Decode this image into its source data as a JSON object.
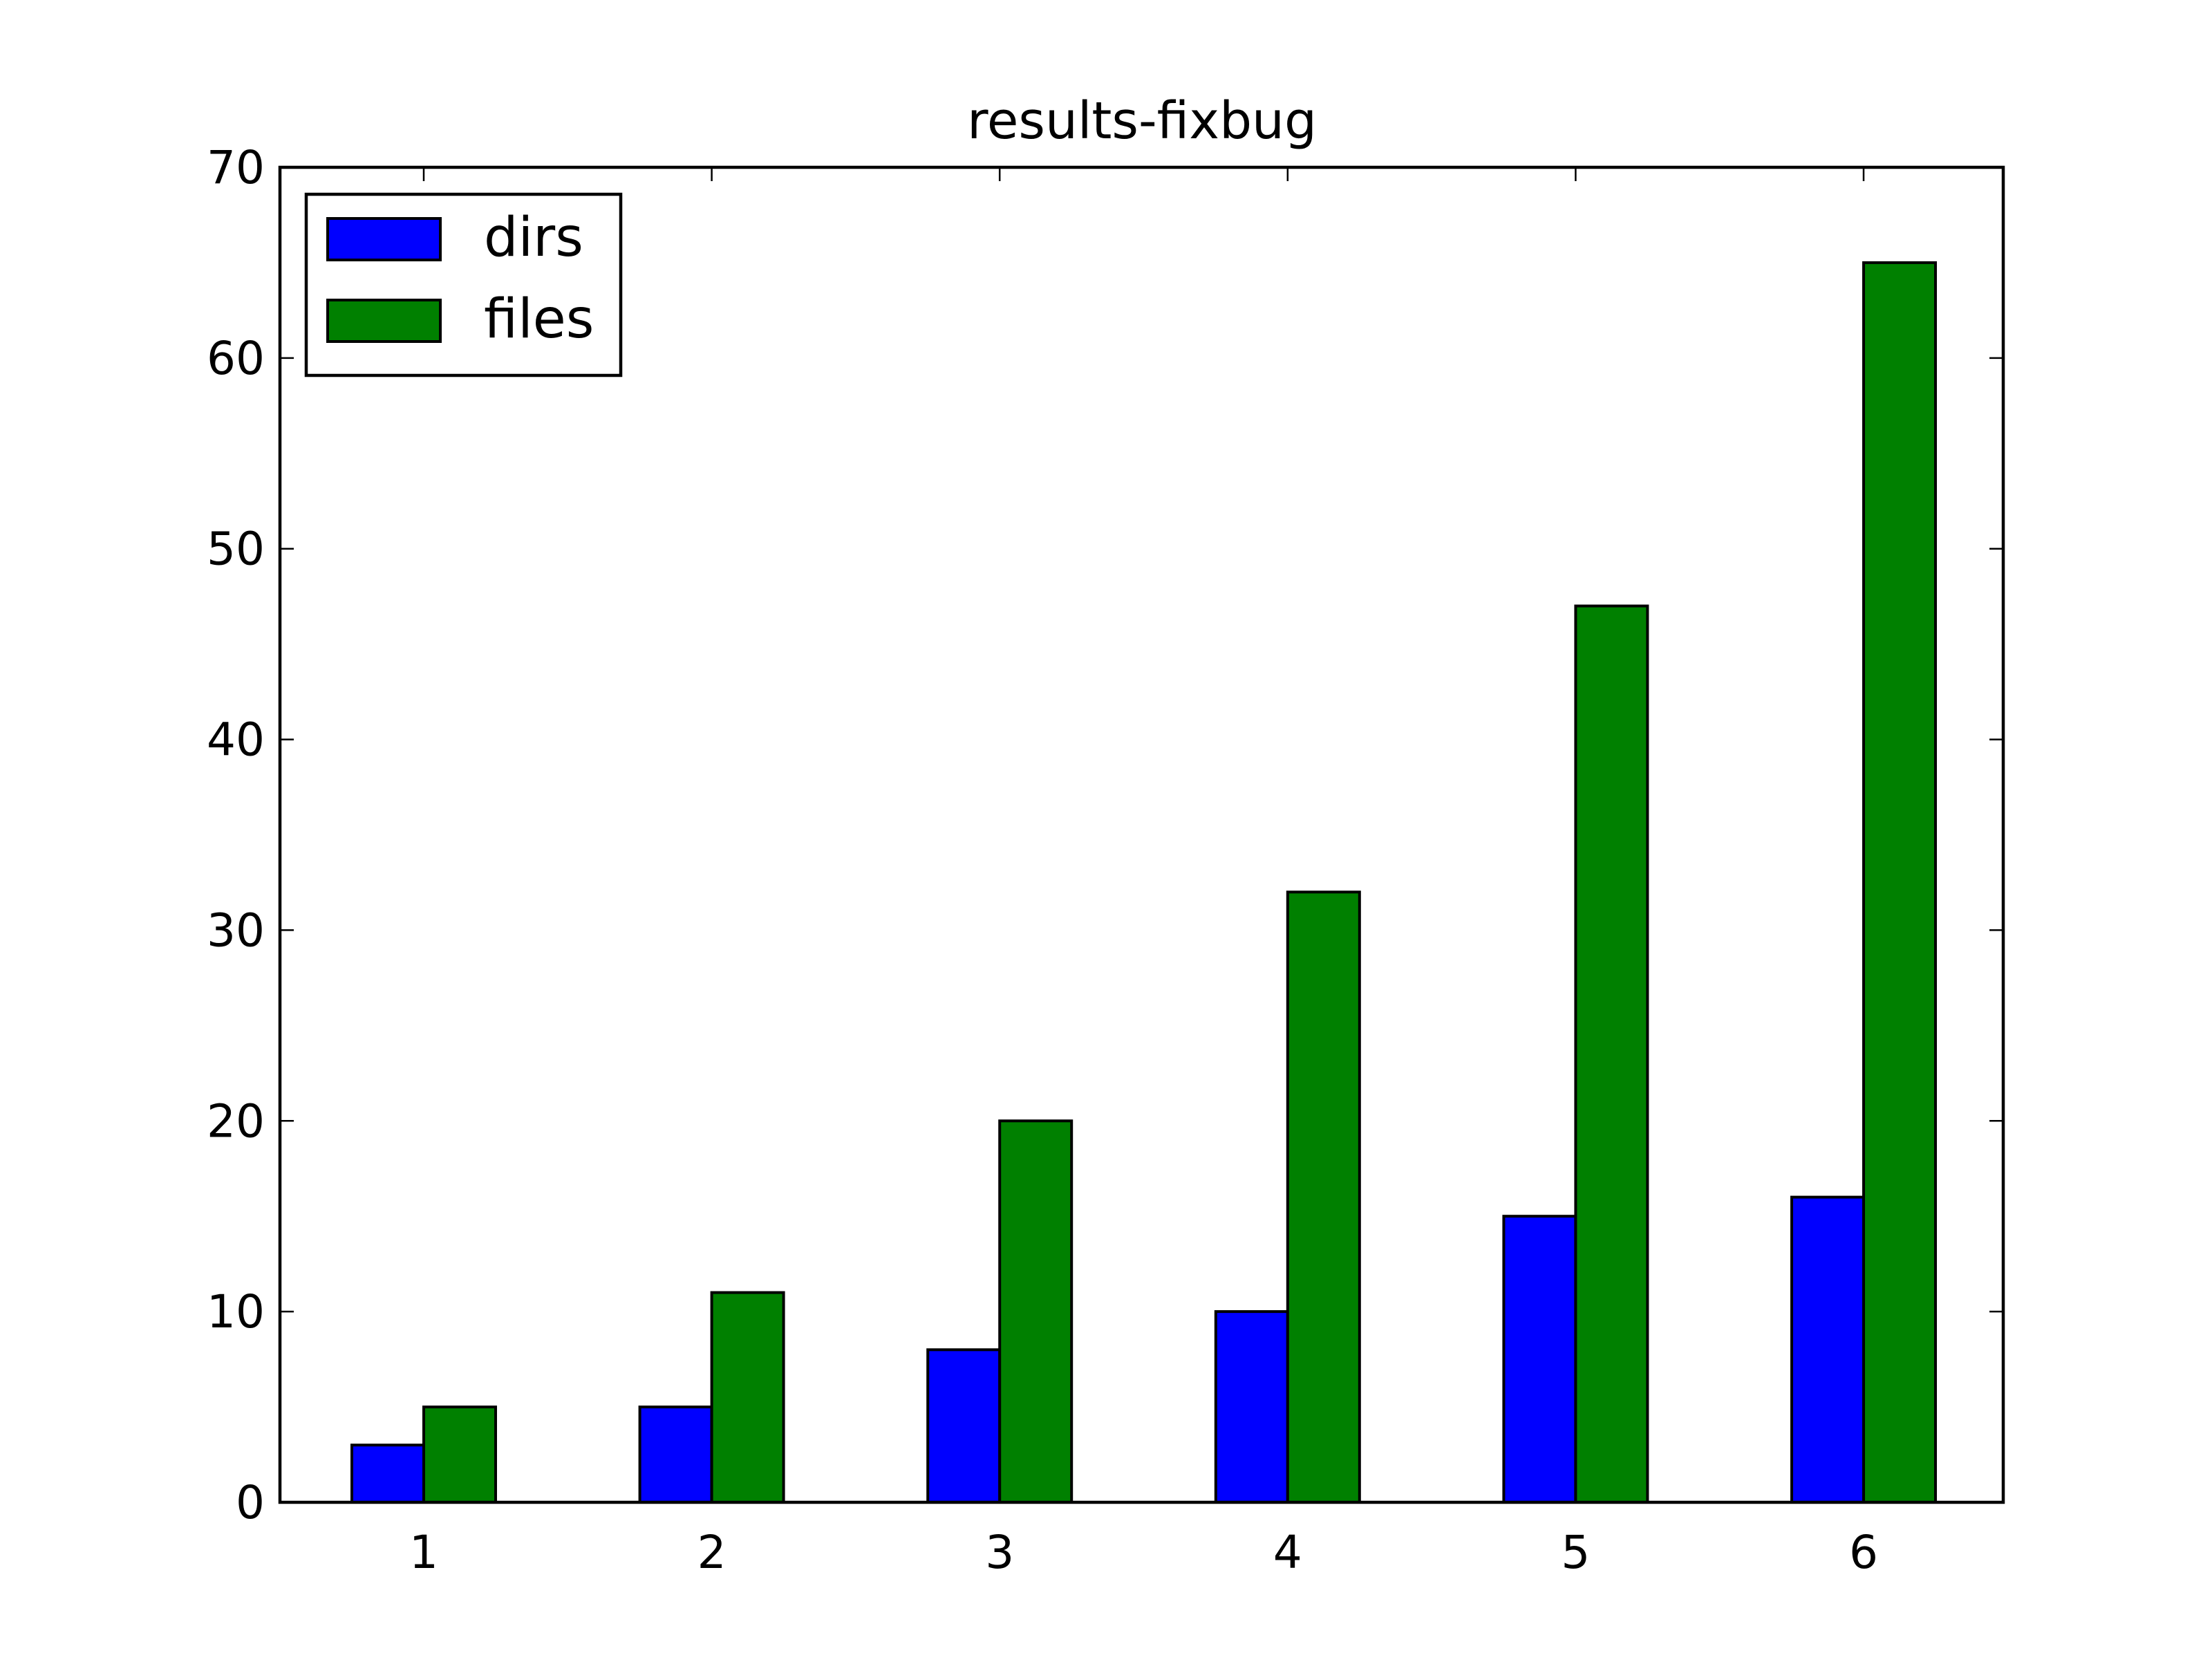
{
  "chart_data": {
    "type": "bar",
    "title": "results-fixbug",
    "xlabel": "",
    "ylabel": "",
    "categories": [
      "1",
      "2",
      "3",
      "4",
      "5",
      "6"
    ],
    "series": [
      {
        "name": "dirs",
        "color": "#0000ff",
        "values": [
          3,
          5,
          8,
          10,
          15,
          16
        ]
      },
      {
        "name": "files",
        "color": "#008000",
        "values": [
          5,
          11,
          20,
          32,
          47,
          65
        ]
      }
    ],
    "yticks": [
      "0",
      "10",
      "20",
      "30",
      "40",
      "50",
      "60",
      "70"
    ],
    "ylim": [
      0,
      70
    ],
    "grid": false,
    "legend_position": "upper-left"
  }
}
